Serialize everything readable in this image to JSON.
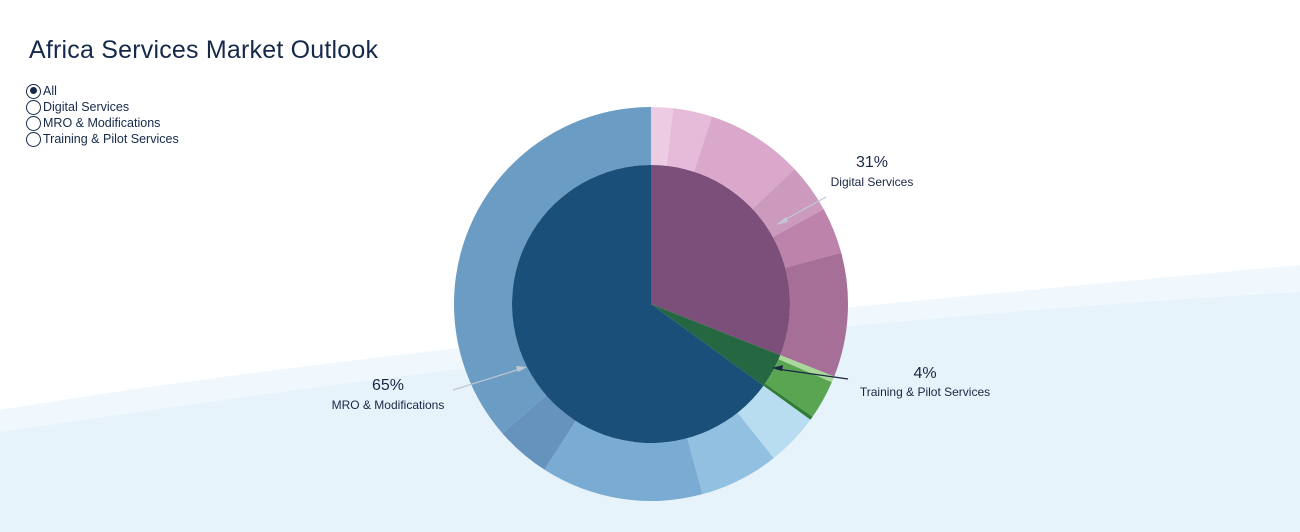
{
  "page": {
    "title": "Africa Services Market Outlook"
  },
  "filters": {
    "selected_index": 0,
    "options": [
      {
        "label": "All"
      },
      {
        "label": "Digital Services"
      },
      {
        "label": "MRO & Modifications"
      },
      {
        "label": "Training & Pilot Services"
      }
    ]
  },
  "colors": {
    "background_wave": "#e6f3fb",
    "mro_inner": "#1a4f7a",
    "digital_inner": "#7b4f79",
    "training_inner": "#256740"
  },
  "chart_data": {
    "type": "pie",
    "title": "Africa Services Market Outlook",
    "inner": [
      {
        "name": "Digital Services",
        "value": 31,
        "label": "31%",
        "color": "#7b4f79"
      },
      {
        "name": "Training & Pilot Services",
        "value": 4,
        "label": "4%",
        "color": "#256740"
      },
      {
        "name": "MRO & Modifications",
        "value": 65,
        "label": "65%",
        "color": "#1a4f7a"
      }
    ],
    "outer": [
      {
        "group": "Digital Services",
        "value": 1.8,
        "color": "#eccbe3"
      },
      {
        "group": "Digital Services",
        "value": 3.2,
        "color": "#e6bad9"
      },
      {
        "group": "Digital Services",
        "value": 8.0,
        "color": "#d9a8cb"
      },
      {
        "group": "Digital Services",
        "value": 4.0,
        "color": "#cc9abd"
      },
      {
        "group": "Digital Services",
        "value": 3.8,
        "color": "#bd83aa"
      },
      {
        "group": "Digital Services",
        "value": 10.2,
        "color": "#a56f98"
      },
      {
        "group": "Training & Pilot Services",
        "value": 0.5,
        "color": "#a8d89a"
      },
      {
        "group": "Training & Pilot Services",
        "value": 3.2,
        "color": "#5aa552"
      },
      {
        "group": "Training & Pilot Services",
        "value": 0.3,
        "color": "#2f7d36"
      },
      {
        "group": "MRO & Modifications",
        "value": 4.3,
        "color": "#b8dcf0"
      },
      {
        "group": "MRO & Modifications",
        "value": 6.5,
        "color": "#92c0e0"
      },
      {
        "group": "MRO & Modifications",
        "value": 13.3,
        "color": "#7aabd2"
      },
      {
        "group": "MRO & Modifications",
        "value": 4.5,
        "color": "#6593bd"
      },
      {
        "group": "MRO & Modifications",
        "value": 36.4,
        "color": "#6b9cc4"
      }
    ]
  }
}
